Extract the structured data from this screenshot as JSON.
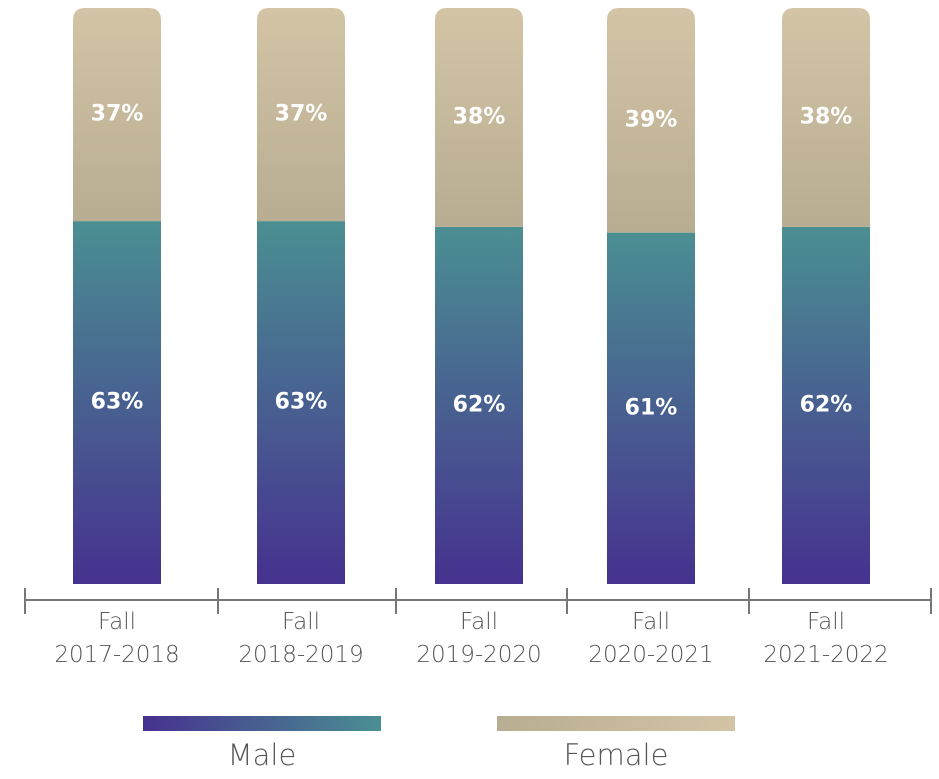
{
  "chart_data": {
    "type": "stacked-bar",
    "categories": [
      "Fall\n2017-2018",
      "Fall\n2018-2019",
      "Fall\n2019-2020",
      "Fall\n2020-2021",
      "Fall\n2021-2022"
    ],
    "series": [
      {
        "name": "Male",
        "color": [
          "#46318f",
          "#4a8f92"
        ],
        "values": [
          63,
          63,
          62,
          61,
          62
        ],
        "value_labels": [
          "63%",
          "63%",
          "62%",
          "61%",
          "62%"
        ]
      },
      {
        "name": "Female",
        "color": [
          "#b8ad92",
          "#d3c4a5"
        ],
        "values": [
          37,
          37,
          38,
          39,
          38
        ],
        "value_labels": [
          "37%",
          "37%",
          "38%",
          "39%",
          "38%"
        ]
      }
    ],
    "ylim": [
      0,
      100
    ],
    "legend": "bottom"
  }
}
